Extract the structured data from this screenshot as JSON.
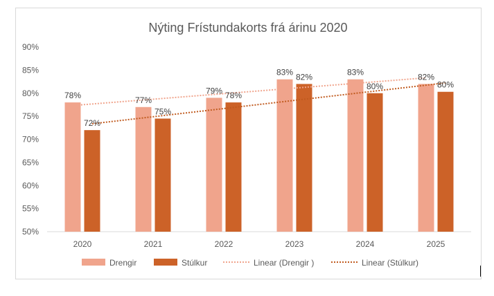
{
  "chart_data": {
    "type": "bar",
    "title": "Nýting Frístundakorts frá árinu 2020",
    "categories": [
      "2020",
      "2021",
      "2022",
      "2023",
      "2024",
      "2025"
    ],
    "series": [
      {
        "name": "Drengir",
        "values": [
          78,
          77,
          79,
          83,
          83,
          82
        ],
        "labels": [
          "78%",
          "77%",
          "79%",
          "83%",
          "83%",
          "82%"
        ],
        "color": "#f0a48c"
      },
      {
        "name": "Stúlkur",
        "values": [
          72,
          74.5,
          78,
          82,
          80,
          80.3
        ],
        "labels": [
          "72%",
          "75%",
          "78%",
          "82%",
          "80%",
          "80%"
        ],
        "color": "#cc6228"
      }
    ],
    "trendlines": [
      {
        "name": "Linear (Drengir )",
        "type": "linear",
        "series": "Drengir",
        "color": "#f0a48c"
      },
      {
        "name": "Linear (Stúlkur)",
        "type": "linear",
        "series": "Stúlkur",
        "color": "#c05a1e"
      }
    ],
    "ylim": [
      50,
      90
    ],
    "yticks": [
      "50%",
      "55%",
      "60%",
      "65%",
      "70%",
      "75%",
      "80%",
      "85%",
      "90%"
    ],
    "xlabel": "",
    "ylabel": "",
    "grid": false,
    "legend": "bottom"
  }
}
